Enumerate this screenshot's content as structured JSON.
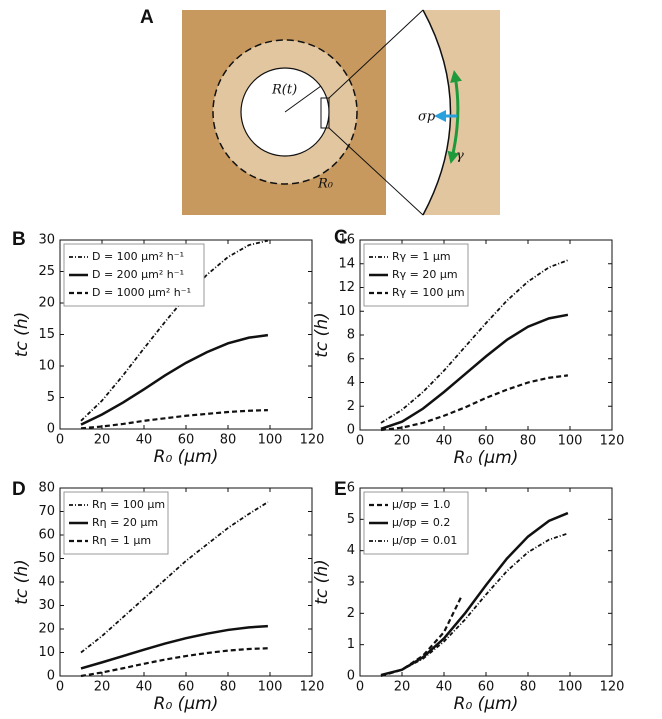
{
  "panel_a": {
    "label": "A",
    "radius_label": "R(t)",
    "outer_label": "R₀",
    "pressure_label": "σp",
    "tension_label": "γ"
  },
  "chart_data": [
    {
      "type": "line",
      "panel": "B",
      "xlabel": "R₀ (μm)",
      "ylabel": "tc (h)",
      "xlim": [
        0,
        120
      ],
      "xticks": [
        0,
        20,
        40,
        60,
        80,
        100,
        120
      ],
      "ylim": [
        0,
        30
      ],
      "yticks": [
        0,
        5,
        10,
        15,
        20,
        25,
        30
      ],
      "legend": "upper left",
      "series": [
        {
          "name": "D = 100 μm² h⁻¹",
          "color": "#111111",
          "style": "dashdot",
          "x": [
            10,
            20,
            30,
            40,
            50,
            60,
            70,
            80,
            90,
            99
          ],
          "values": [
            1.3,
            4.5,
            8.5,
            12.8,
            17,
            21,
            24.5,
            27.3,
            29.2,
            29.9
          ]
        },
        {
          "name": "D = 200 μm² h⁻¹",
          "color": "#111111",
          "style": "solid",
          "x": [
            10,
            20,
            30,
            40,
            50,
            60,
            70,
            80,
            90,
            99
          ],
          "values": [
            0.7,
            2.3,
            4.2,
            6.3,
            8.5,
            10.5,
            12.2,
            13.6,
            14.5,
            14.9
          ]
        },
        {
          "name": "D = 1000 μm² h⁻¹",
          "color": "#111111",
          "style": "dashed",
          "x": [
            10,
            20,
            30,
            40,
            50,
            60,
            70,
            80,
            90,
            99
          ],
          "values": [
            0.1,
            0.4,
            0.8,
            1.3,
            1.7,
            2.1,
            2.4,
            2.7,
            2.9,
            3.0
          ]
        }
      ]
    },
    {
      "type": "line",
      "panel": "C",
      "xlabel": "R₀ (μm)",
      "ylabel": "tc (h)",
      "xlim": [
        0,
        120
      ],
      "xticks": [
        0,
        20,
        40,
        60,
        80,
        100,
        120
      ],
      "ylim": [
        0,
        16
      ],
      "yticks": [
        0,
        2,
        4,
        6,
        8,
        10,
        12,
        14,
        16
      ],
      "legend": "upper left",
      "series": [
        {
          "name": "Rγ = 1 μm",
          "color": "#111111",
          "style": "dashdot",
          "x": [
            10,
            20,
            30,
            40,
            50,
            60,
            70,
            80,
            90,
            99
          ],
          "values": [
            0.6,
            1.7,
            3.2,
            5.0,
            7.0,
            9.0,
            10.9,
            12.5,
            13.7,
            14.3
          ]
        },
        {
          "name": "Rγ = 20 μm",
          "color": "#111111",
          "style": "solid",
          "x": [
            10,
            20,
            30,
            40,
            50,
            60,
            70,
            80,
            90,
            99
          ],
          "values": [
            0.1,
            0.7,
            1.8,
            3.2,
            4.7,
            6.2,
            7.6,
            8.7,
            9.4,
            9.7
          ]
        },
        {
          "name": "Rγ = 100 μm",
          "color": "#111111",
          "style": "dashed",
          "x": [
            10,
            20,
            30,
            40,
            50,
            60,
            70,
            80,
            90,
            99
          ],
          "values": [
            0,
            0.2,
            0.6,
            1.2,
            1.9,
            2.7,
            3.4,
            4.0,
            4.4,
            4.6
          ]
        }
      ]
    },
    {
      "type": "line",
      "panel": "D",
      "xlabel": "R₀ (μm)",
      "ylabel": "tc (h)",
      "xlim": [
        0,
        120
      ],
      "xticks": [
        0,
        20,
        40,
        60,
        80,
        100,
        120
      ],
      "ylim": [
        0,
        80
      ],
      "yticks": [
        0,
        10,
        20,
        30,
        40,
        50,
        60,
        70,
        80
      ],
      "legend": "upper left",
      "series": [
        {
          "name": "Rη = 100 μm",
          "color": "#111111",
          "style": "dashdot",
          "x": [
            10,
            20,
            30,
            40,
            50,
            60,
            70,
            80,
            90,
            99
          ],
          "values": [
            10,
            17,
            25,
            33,
            41,
            49,
            56,
            63,
            69,
            74
          ]
        },
        {
          "name": "Rη = 20 μm",
          "color": "#111111",
          "style": "solid",
          "x": [
            10,
            20,
            30,
            40,
            50,
            60,
            70,
            80,
            90,
            99
          ],
          "values": [
            3.2,
            5.8,
            8.5,
            11.2,
            13.8,
            16.1,
            18,
            19.6,
            20.7,
            21.2
          ]
        },
        {
          "name": "Rη = 1 μm",
          "color": "#111111",
          "style": "dashed",
          "x": [
            10,
            20,
            30,
            40,
            50,
            60,
            70,
            80,
            90,
            99
          ],
          "values": [
            0,
            1.5,
            3.3,
            5.2,
            7,
            8.5,
            9.8,
            10.8,
            11.5,
            11.8
          ]
        }
      ]
    },
    {
      "type": "line",
      "panel": "E",
      "xlabel": "R₀ (μm)",
      "ylabel": "tc (h)",
      "xlim": [
        0,
        120
      ],
      "xticks": [
        0,
        20,
        40,
        60,
        80,
        100,
        120
      ],
      "ylim": [
        0,
        6
      ],
      "yticks": [
        0,
        1,
        2,
        3,
        4,
        5,
        6
      ],
      "legend": "upper left",
      "series": [
        {
          "name": "μ/σp = 1.0",
          "color": "#111111",
          "style": "dashed",
          "x": [
            10,
            20,
            30,
            40,
            48
          ],
          "values": [
            0,
            0.2,
            0.65,
            1.4,
            2.5
          ]
        },
        {
          "name": "μ/σp = 0.2",
          "color": "#111111",
          "style": "solid",
          "x": [
            10,
            20,
            30,
            40,
            50,
            60,
            70,
            80,
            90,
            99
          ],
          "values": [
            0.03,
            0.2,
            0.6,
            1.2,
            2.0,
            2.9,
            3.75,
            4.45,
            4.95,
            5.2
          ]
        },
        {
          "name": "μ/σp = 0.01",
          "color": "#111111",
          "style": "dashdot",
          "x": [
            10,
            20,
            30,
            40,
            50,
            60,
            70,
            80,
            90,
            99
          ],
          "values": [
            0.03,
            0.2,
            0.55,
            1.1,
            1.8,
            2.6,
            3.35,
            3.95,
            4.35,
            4.55
          ]
        }
      ]
    }
  ]
}
